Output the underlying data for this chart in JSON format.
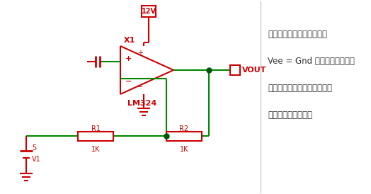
{
  "bg_color": "#ffffff",
  "circuit_color": "#cc0000",
  "wire_color": "#008800",
  "dot_color": "#005500",
  "text_color": "#333333",
  "divider_color": "#cccccc",
  "line1": "在这里，由于负轨不可用，",
  "line2": "Vee = Gnd 和负电压不能由运",
  "line3": "算放大器输出提供。因此，虚",
  "line4": "拟接地条件为无效。"
}
